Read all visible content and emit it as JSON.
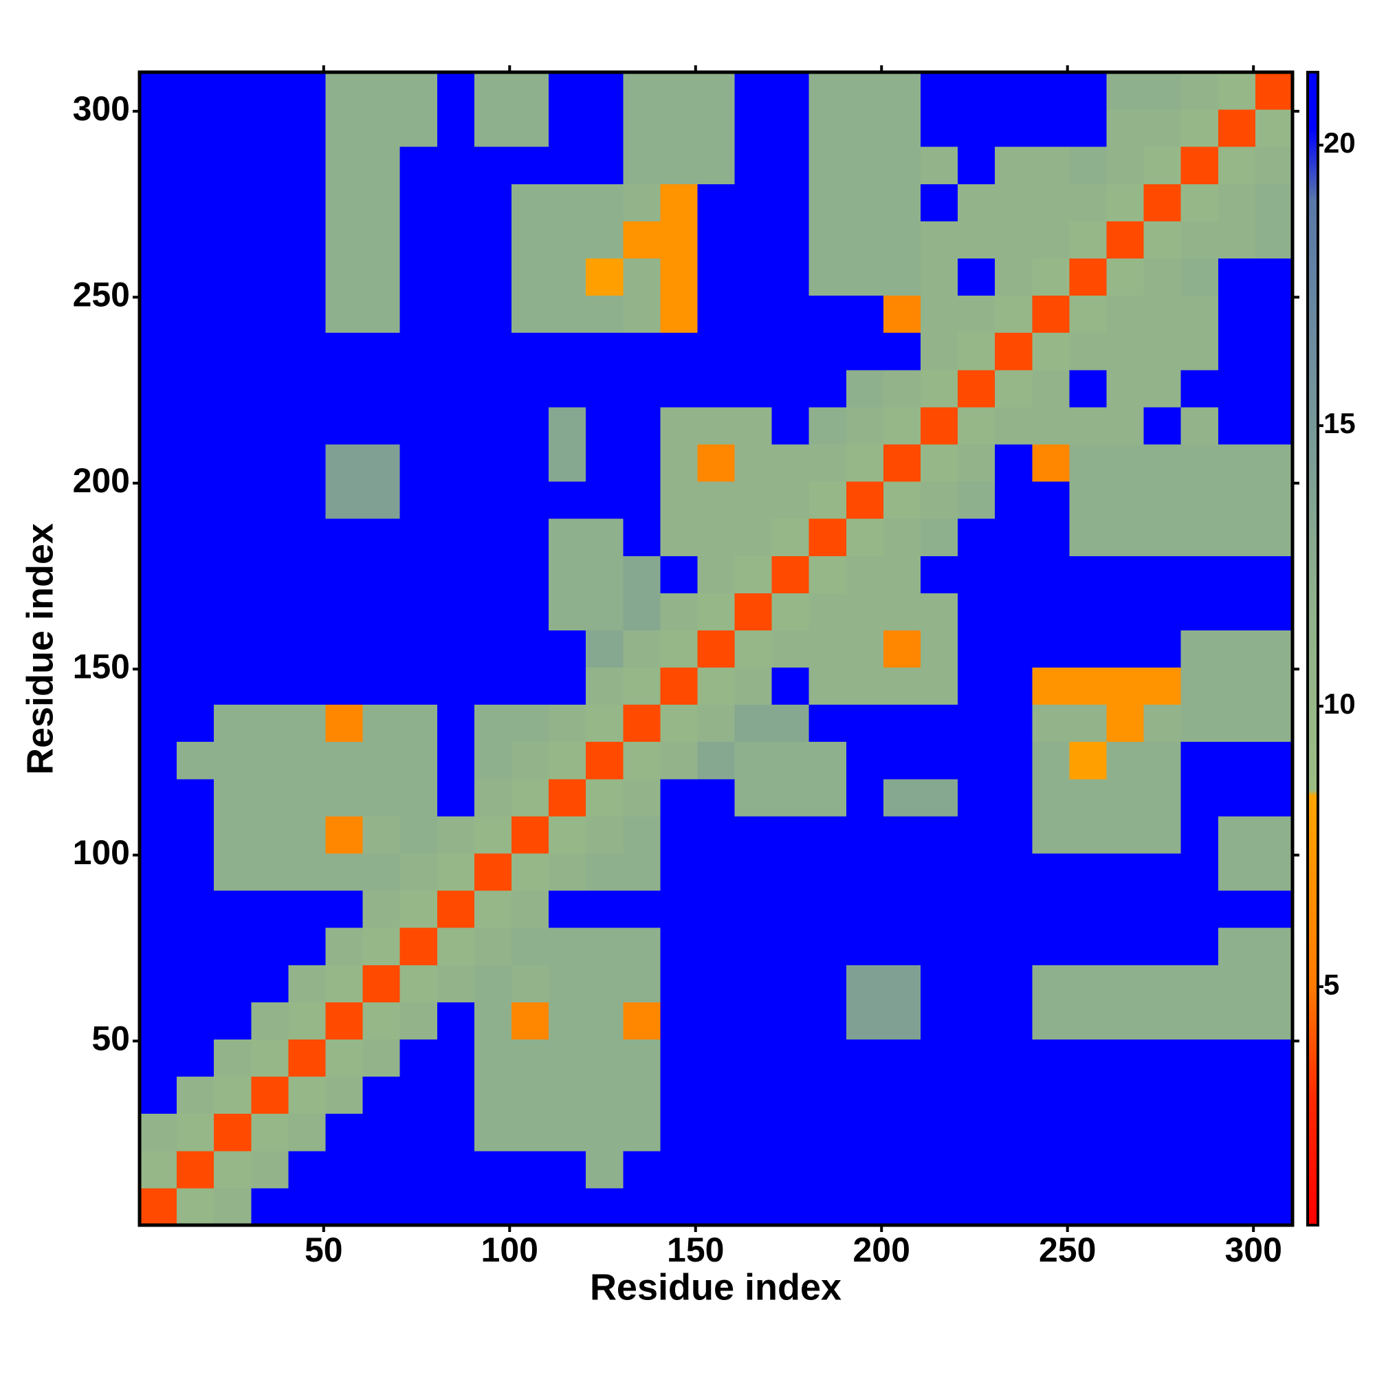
{
  "chart_data": {
    "type": "heatmap",
    "xlabel": "Residue index",
    "ylabel": "Residue index",
    "xlim": [
      0.5,
      310.5
    ],
    "ylim": [
      0.5,
      310.5
    ],
    "xticks": [
      50,
      100,
      150,
      200,
      250,
      300
    ],
    "yticks": [
      50,
      100,
      150,
      200,
      250,
      300
    ],
    "xbins": [
      0.5,
      10.5,
      20.5,
      30.5,
      40.5,
      50.5,
      60.5,
      70.5,
      80.5,
      90.5,
      100.5,
      110.5,
      120.5,
      130.5,
      140.5,
      150.5,
      160.5,
      170.5,
      180.5,
      190.5,
      200.5,
      210.5,
      220.5,
      230.5,
      240.5,
      250.5,
      260.5,
      270.5,
      280.5,
      290.5,
      300.5,
      310.5
    ],
    "ybins": [
      0.5,
      10.5,
      20.5,
      30.5,
      40.5,
      50.5,
      60.5,
      70.5,
      80.5,
      90.5,
      100.5,
      110.5,
      120.5,
      130.5,
      140.5,
      150.5,
      160.5,
      170.5,
      180.5,
      190.5,
      200.5,
      210.5,
      220.5,
      230.5,
      240.5,
      250.5,
      260.5,
      270.5,
      280.5,
      290.5,
      300.5,
      310.5
    ],
    "clim": [
      0.75,
      21.3
    ],
    "cticks": [
      5,
      10,
      15,
      20
    ],
    "colorscale": [
      [
        0.75,
        "#ff0000"
      ],
      [
        3,
        "#ff2a00"
      ],
      [
        5,
        "#ff7a00"
      ],
      [
        8.4,
        "#ffa500"
      ],
      [
        8.5,
        "#9cbc84"
      ],
      [
        12,
        "#8fb08c"
      ],
      [
        19,
        "#5a78a8"
      ],
      [
        20.3,
        "#0000ff"
      ],
      [
        21.3,
        "#0000ff"
      ]
    ],
    "z": [
      [
        3.8,
        10,
        11,
        25,
        25,
        25,
        25,
        25,
        25,
        25,
        25,
        25,
        25,
        25,
        25,
        25,
        25,
        25,
        25,
        25,
        25,
        25,
        25,
        25,
        25,
        25,
        25,
        25,
        25,
        25,
        25
      ],
      [
        10,
        3.8,
        10,
        11,
        25,
        25,
        25,
        25,
        25,
        25,
        25,
        25,
        12,
        25,
        25,
        25,
        25,
        25,
        25,
        25,
        25,
        25,
        25,
        25,
        25,
        25,
        25,
        25,
        25,
        25,
        25
      ],
      [
        11,
        10,
        3.8,
        10,
        11,
        25,
        25,
        25,
        25,
        12,
        12,
        12,
        12,
        12,
        25,
        25,
        25,
        25,
        25,
        25,
        25,
        25,
        25,
        25,
        25,
        25,
        25,
        25,
        25,
        25,
        25
      ],
      [
        25,
        11,
        10,
        3.8,
        10,
        11,
        25,
        25,
        25,
        12,
        12,
        12,
        12,
        12,
        25,
        25,
        25,
        25,
        25,
        25,
        25,
        25,
        25,
        25,
        25,
        25,
        25,
        25,
        25,
        25,
        25
      ],
      [
        25,
        25,
        11,
        10,
        3.8,
        10,
        11,
        25,
        25,
        12,
        12,
        12,
        12,
        12,
        25,
        25,
        25,
        25,
        25,
        25,
        25,
        25,
        25,
        25,
        25,
        25,
        25,
        25,
        25,
        25,
        25
      ],
      [
        25,
        25,
        25,
        11,
        10,
        3.8,
        10,
        11,
        25,
        12,
        6,
        12,
        12,
        6,
        25,
        25,
        25,
        25,
        25,
        14,
        14,
        25,
        25,
        25,
        12,
        12,
        12,
        12,
        12,
        12,
        12
      ],
      [
        25,
        25,
        25,
        25,
        11,
        10,
        3.8,
        10,
        11,
        12,
        11,
        12,
        12,
        12,
        25,
        25,
        25,
        25,
        25,
        14,
        14,
        25,
        25,
        25,
        12,
        12,
        12,
        12,
        12,
        12,
        12
      ],
      [
        25,
        25,
        25,
        25,
        25,
        11,
        10,
        3.8,
        10,
        11,
        12,
        12,
        12,
        12,
        25,
        25,
        25,
        25,
        25,
        25,
        25,
        25,
        25,
        25,
        25,
        25,
        25,
        25,
        25,
        12,
        12
      ],
      [
        25,
        25,
        25,
        25,
        25,
        25,
        11,
        10,
        3.8,
        10,
        11,
        25,
        25,
        25,
        25,
        25,
        25,
        25,
        25,
        25,
        25,
        25,
        25,
        25,
        25,
        25,
        25,
        25,
        25,
        25,
        25
      ],
      [
        25,
        25,
        12,
        12,
        12,
        12,
        12,
        11,
        10,
        3.8,
        10,
        11,
        12,
        12,
        25,
        25,
        25,
        25,
        25,
        25,
        25,
        25,
        25,
        25,
        25,
        25,
        25,
        25,
        25,
        12,
        12
      ],
      [
        25,
        25,
        12,
        12,
        12,
        6,
        11,
        12,
        11,
        10,
        3.8,
        10,
        11,
        12,
        25,
        25,
        25,
        25,
        25,
        25,
        25,
        25,
        25,
        25,
        12,
        12,
        12,
        12,
        25,
        12,
        12
      ],
      [
        25,
        25,
        12,
        12,
        12,
        12,
        12,
        12,
        25,
        11,
        10,
        3.8,
        10,
        11,
        25,
        25,
        12,
        12,
        12,
        25,
        13,
        13,
        25,
        25,
        12,
        12,
        12,
        12,
        25,
        25,
        25
      ],
      [
        25,
        12,
        12,
        12,
        12,
        12,
        12,
        12,
        25,
        12,
        11,
        10,
        3.8,
        10,
        11,
        13,
        12,
        12,
        12,
        25,
        25,
        25,
        25,
        25,
        12,
        8,
        12,
        12,
        25,
        25,
        25
      ],
      [
        25,
        25,
        12,
        12,
        12,
        6,
        12,
        12,
        25,
        12,
        12,
        11,
        10,
        3.8,
        10,
        11,
        13,
        13,
        25,
        25,
        25,
        25,
        25,
        25,
        11,
        11,
        7,
        11,
        12,
        12,
        12
      ],
      [
        25,
        25,
        25,
        25,
        25,
        25,
        25,
        25,
        25,
        25,
        25,
        25,
        11,
        10,
        3.8,
        10,
        11,
        25,
        11,
        11,
        11,
        11,
        25,
        25,
        7,
        7,
        7,
        7,
        12,
        12,
        12
      ],
      [
        25,
        25,
        25,
        25,
        25,
        25,
        25,
        25,
        25,
        25,
        25,
        25,
        13,
        11,
        10,
        3.8,
        10,
        11,
        11,
        11,
        6,
        11,
        25,
        25,
        25,
        25,
        25,
        25,
        12,
        12,
        12
      ],
      [
        25,
        25,
        25,
        25,
        25,
        25,
        25,
        25,
        25,
        25,
        25,
        12,
        12,
        13,
        11,
        10,
        3.8,
        10,
        11,
        11,
        11,
        11,
        25,
        25,
        25,
        25,
        25,
        25,
        25,
        25,
        25
      ],
      [
        25,
        25,
        25,
        25,
        25,
        25,
        25,
        25,
        25,
        25,
        25,
        12,
        12,
        13,
        25,
        11,
        10,
        3.8,
        10,
        11,
        11,
        25,
        25,
        25,
        25,
        25,
        25,
        25,
        25,
        25,
        25
      ],
      [
        25,
        25,
        25,
        25,
        25,
        25,
        25,
        25,
        25,
        25,
        25,
        12,
        12,
        25,
        11,
        11,
        11,
        10,
        3.8,
        10,
        11,
        12,
        25,
        25,
        25,
        12,
        12,
        12,
        12,
        12,
        12
      ],
      [
        25,
        25,
        25,
        25,
        25,
        14,
        14,
        25,
        25,
        25,
        25,
        25,
        25,
        25,
        11,
        11,
        11,
        11,
        10,
        3.8,
        10,
        11,
        12,
        25,
        25,
        12,
        12,
        12,
        12,
        12,
        12
      ],
      [
        25,
        25,
        25,
        25,
        25,
        14,
        14,
        25,
        25,
        25,
        25,
        13,
        25,
        25,
        11,
        6,
        11,
        11,
        11,
        10,
        3.8,
        10,
        11,
        25,
        6,
        12,
        12,
        12,
        12,
        12,
        12
      ],
      [
        25,
        25,
        25,
        25,
        25,
        25,
        25,
        25,
        25,
        25,
        25,
        13,
        25,
        25,
        11,
        11,
        11,
        25,
        12,
        11,
        10,
        3.8,
        10,
        11,
        11,
        11,
        11,
        25,
        11,
        25,
        25
      ],
      [
        25,
        25,
        25,
        25,
        25,
        25,
        25,
        25,
        25,
        25,
        25,
        25,
        25,
        25,
        25,
        25,
        25,
        25,
        25,
        12,
        11,
        10,
        3.8,
        10,
        11,
        25,
        11,
        11,
        25,
        25,
        25
      ],
      [
        25,
        25,
        25,
        25,
        25,
        25,
        25,
        25,
        25,
        25,
        25,
        25,
        25,
        25,
        25,
        25,
        25,
        25,
        25,
        25,
        25,
        11,
        10,
        3.8,
        10,
        11,
        11,
        11,
        11,
        25,
        25
      ],
      [
        25,
        25,
        25,
        25,
        25,
        12,
        12,
        25,
        25,
        25,
        12,
        12,
        12,
        11,
        7,
        25,
        25,
        25,
        25,
        25,
        6,
        11,
        11,
        10,
        3.8,
        10,
        11,
        11,
        11,
        25,
        25
      ],
      [
        25,
        25,
        25,
        25,
        25,
        12,
        12,
        25,
        25,
        25,
        12,
        12,
        8,
        11,
        7,
        25,
        25,
        25,
        12,
        12,
        12,
        11,
        25,
        11,
        10,
        3.8,
        10,
        11,
        12,
        25,
        25
      ],
      [
        25,
        25,
        25,
        25,
        25,
        12,
        12,
        25,
        25,
        25,
        12,
        12,
        12,
        7,
        7,
        25,
        25,
        25,
        12,
        12,
        12,
        11,
        11,
        11,
        11,
        10,
        3.8,
        10,
        11,
        11,
        12
      ],
      [
        25,
        25,
        25,
        25,
        25,
        12,
        12,
        25,
        25,
        25,
        12,
        12,
        12,
        11,
        7,
        25,
        25,
        25,
        12,
        12,
        12,
        25,
        11,
        11,
        11,
        11,
        10,
        3.8,
        10,
        11,
        12
      ],
      [
        25,
        25,
        25,
        25,
        25,
        12,
        12,
        25,
        25,
        25,
        25,
        25,
        25,
        12,
        12,
        12,
        25,
        25,
        12,
        12,
        12,
        11,
        25,
        11,
        11,
        12,
        11,
        10,
        3.8,
        10,
        11
      ],
      [
        25,
        25,
        25,
        25,
        25,
        12,
        12,
        12,
        25,
        12,
        12,
        25,
        25,
        12,
        12,
        12,
        25,
        25,
        12,
        12,
        12,
        25,
        25,
        25,
        25,
        25,
        11,
        11,
        10,
        3.8,
        10
      ],
      [
        25,
        25,
        25,
        25,
        25,
        12,
        12,
        12,
        25,
        12,
        12,
        25,
        25,
        12,
        12,
        12,
        25,
        25,
        12,
        12,
        12,
        25,
        25,
        25,
        25,
        25,
        12,
        12,
        11,
        10,
        3.8
      ]
    ]
  }
}
